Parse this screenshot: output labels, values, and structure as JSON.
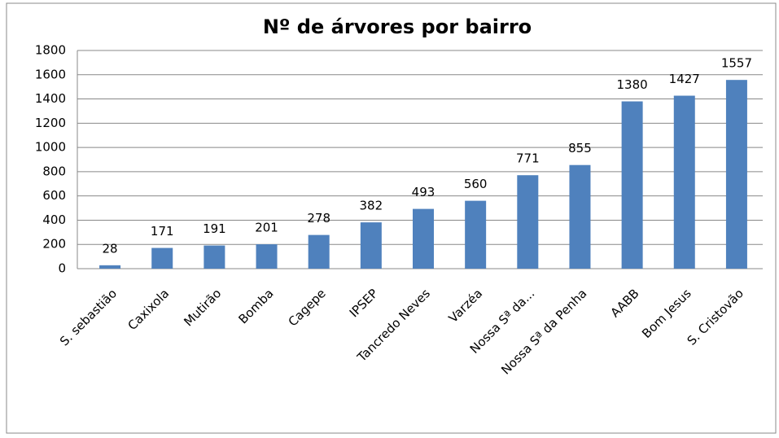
{
  "chart_data": {
    "type": "bar",
    "title": "Nº de árvores por bairro",
    "categories": [
      "S. sebastião",
      "Caxixola",
      "Mutirão",
      "Bomba",
      "Cagepe",
      "IPSEP",
      "Tancredo Neves",
      "Varzéa",
      "Nossa Sª da...",
      "Nossa Sª da Penha",
      "AABB",
      "Bom Jesus",
      "S. Cristovão"
    ],
    "values": [
      28,
      171,
      191,
      201,
      278,
      382,
      493,
      560,
      771,
      855,
      1380,
      1427,
      1557
    ],
    "color": "#4f81bd",
    "ylim": [
      0,
      1800
    ],
    "yticks": [
      0,
      200,
      400,
      600,
      800,
      1000,
      1200,
      1400,
      1600,
      1800
    ],
    "grid": true
  }
}
